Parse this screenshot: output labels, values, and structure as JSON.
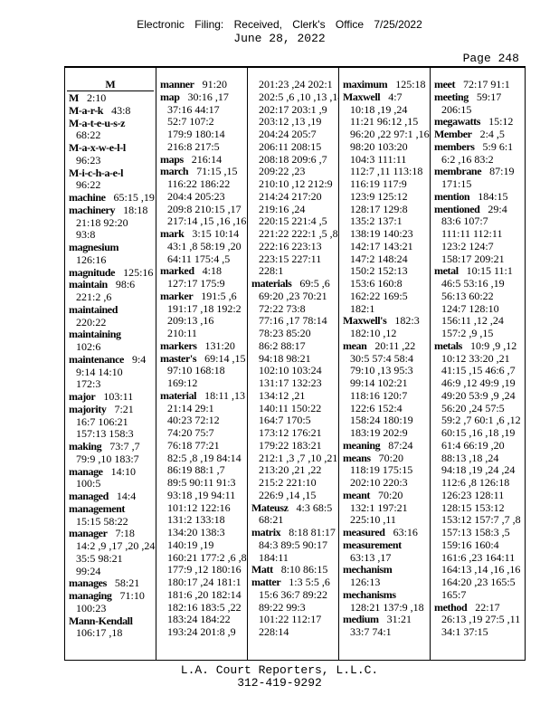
{
  "header": {
    "filing_stamp": "Electronic Filing: Received, Clerk's Office 7/25/2022",
    "date": "June 28, 2022",
    "page": "Page 248"
  },
  "section_letter": "M",
  "columns": [
    [
      {
        "term": "M",
        "lines": [
          "2:10"
        ]
      },
      {
        "term": "M-a-r-k",
        "lines": [
          "43:8"
        ]
      },
      {
        "term": "M-a-t-e-u-s-z",
        "lines": [
          "",
          "68:22"
        ]
      },
      {
        "term": "M-a-x-w-e-l-l",
        "lines": [
          "",
          "96:23"
        ]
      },
      {
        "term": "M-i-c-h-a-e-l",
        "lines": [
          "",
          "96:22"
        ]
      },
      {
        "term": "machine",
        "lines": [
          "65:15 ,19"
        ]
      },
      {
        "term": "machinery",
        "lines": [
          "18:18",
          "21:18 92:20",
          "93:8"
        ]
      },
      {
        "term": "magnesium",
        "lines": [
          "",
          "126:16"
        ]
      },
      {
        "term": "magnitude",
        "lines": [
          "125:16"
        ]
      },
      {
        "term": "maintain",
        "lines": [
          "98:6",
          "221:2 ,6"
        ]
      },
      {
        "term": "maintained",
        "lines": [
          "",
          "220:22"
        ]
      },
      {
        "term": "maintaining",
        "lines": [
          "",
          "102:6"
        ]
      },
      {
        "term": "maintenance",
        "lines": [
          "9:4",
          "9:14 14:10",
          "172:3"
        ]
      },
      {
        "term": "major",
        "lines": [
          "103:11"
        ]
      },
      {
        "term": "majority",
        "lines": [
          "7:21",
          "16:7 106:21",
          "157:13 158:3"
        ]
      },
      {
        "term": "making",
        "lines": [
          "73:7 ,7",
          "79:9 ,10 183:7"
        ]
      },
      {
        "term": "manage",
        "lines": [
          "14:10",
          "100:5"
        ]
      },
      {
        "term": "managed",
        "lines": [
          "14:4"
        ]
      },
      {
        "term": "management",
        "lines": [
          "",
          "15:15 58:22"
        ]
      },
      {
        "term": "manager",
        "lines": [
          "7:18",
          "14:2 ,9 ,17 ,20 ,24",
          "35:5 98:21",
          "99:24"
        ]
      },
      {
        "term": "manages",
        "lines": [
          "58:21"
        ]
      },
      {
        "term": "managing",
        "lines": [
          "71:10",
          "100:23"
        ]
      },
      {
        "term": "Mann-Kendall",
        "lines": [
          "",
          "106:17 ,18"
        ]
      }
    ],
    [
      {
        "term": "manner",
        "lines": [
          "91:20"
        ]
      },
      {
        "term": "map",
        "lines": [
          "30:16 ,17",
          "37:16 44:17",
          "52:7 107:2",
          "179:9 180:14",
          "216:8 217:5"
        ]
      },
      {
        "term": "maps",
        "lines": [
          "216:14"
        ]
      },
      {
        "term": "march",
        "lines": [
          "71:15 ,15",
          "116:22 186:22",
          "204:4 205:23",
          "209:8 210:15 ,17",
          "217:14 ,15 ,16 ,16"
        ]
      },
      {
        "term": "mark",
        "lines": [
          "3:15 10:14",
          "43:1 ,8 58:19 ,20",
          "64:11 175:4 ,5"
        ]
      },
      {
        "term": "marked",
        "lines": [
          "4:18",
          "127:17 175:9"
        ]
      },
      {
        "term": "marker",
        "lines": [
          "191:5 ,6",
          "191:17 ,18 192:2",
          "209:13 ,16",
          "210:11"
        ]
      },
      {
        "term": "markers",
        "lines": [
          "131:20"
        ]
      },
      {
        "term": "master's",
        "lines": [
          "69:14 ,15",
          "97:10 168:18",
          "169:12"
        ]
      },
      {
        "term": "material",
        "lines": [
          "18:11 ,13",
          "21:14 29:1",
          "40:23 72:12",
          "74:20 75:7",
          "76:18 77:21",
          "82:5 ,8 ,19 84:14",
          "86:19 88:1 ,7",
          "89:5 90:11 91:3",
          "93:18 ,19 94:11",
          "101:12 122:16",
          "131:2 133:18",
          "134:20 138:3",
          "140:19 ,19",
          "160:21 177:2 ,6 ,8",
          "177:9 ,12 180:16",
          "180:17 ,24 181:1",
          "181:6 ,20 182:14",
          "182:16 183:5 ,22",
          "183:24 184:22",
          "193:24 201:8 ,9"
        ]
      }
    ],
    [
      {
        "term": "",
        "lines": [
          "",
          "201:23 ,24 202:1",
          "202:5 ,6 ,10 ,13 ,14",
          "202:17 203:1 ,9",
          "203:12 ,13 ,19",
          "204:24 205:7",
          "206:11 208:15",
          "208:18 209:6 ,7",
          "209:22 ,23",
          "210:10 ,12 212:9",
          "214:24 217:20",
          "219:16 ,24",
          "220:15 221:4 ,5",
          "221:22 222:1 ,5 ,8",
          "222:16 223:13",
          "223:15 227:11",
          "228:1"
        ]
      },
      {
        "term": "materials",
        "lines": [
          "69:5 ,6",
          "69:20 ,23 70:21",
          "72:22 73:8",
          "77:16 ,17 78:14",
          "78:23 85:20",
          "86:2 88:17",
          "94:18 98:21",
          "102:10 103:24",
          "131:17 132:23",
          "134:12 ,21",
          "140:11 150:22",
          "164:7 170:5",
          "173:12 176:21",
          "179:22 183:21",
          "212:1 ,3 ,7 ,10 ,21",
          "213:20 ,21 ,22",
          "215:2 221:10",
          "226:9 ,14 ,15"
        ]
      },
      {
        "term": "Mateusz",
        "lines": [
          "4:3 68:5",
          "68:21"
        ]
      },
      {
        "term": "matrix",
        "lines": [
          "8:18 81:17",
          "84:3 89:5 90:17",
          "184:11"
        ]
      },
      {
        "term": "Matt",
        "lines": [
          "8:10 86:15"
        ]
      },
      {
        "term": "matter",
        "lines": [
          "1:3 5:5 ,6",
          "15:6 36:7 89:22",
          "89:22 99:3",
          "101:22 112:17",
          "228:14"
        ]
      }
    ],
    [
      {
        "term": "maximum",
        "lines": [
          "125:18"
        ]
      },
      {
        "term": "Maxwell",
        "lines": [
          "4:7",
          "10:18 ,19 ,24",
          "11:21 96:12 ,15",
          "96:20 ,22 97:1 ,16",
          "98:20 103:20",
          "104:3 111:11",
          "112:7 ,11 113:18",
          "116:19 117:9",
          "123:9 125:12",
          "128:17 129:8",
          "135:2 137:1",
          "138:19 140:23",
          "142:17 143:21",
          "147:2 148:24",
          "150:2 152:13",
          "153:6 160:8",
          "162:22 169:5",
          "182:1"
        ]
      },
      {
        "term": "Maxwell's",
        "lines": [
          "182:3",
          "182:10 ,12"
        ]
      },
      {
        "term": "mean",
        "lines": [
          "20:11 ,22",
          "30:5 57:4 58:4",
          "79:10 ,13 95:3",
          "99:14 102:21",
          "118:16 120:7",
          "122:6 152:4",
          "158:24 180:19",
          "183:19 202:9"
        ]
      },
      {
        "term": "meaning",
        "lines": [
          "87:24"
        ]
      },
      {
        "term": "means",
        "lines": [
          "70:20",
          "118:19 175:15",
          "202:10 220:3"
        ]
      },
      {
        "term": "meant",
        "lines": [
          "70:20",
          "132:1 197:21",
          "225:10 ,11"
        ]
      },
      {
        "term": "measured",
        "lines": [
          "63:16"
        ]
      },
      {
        "term": "measurement",
        "lines": [
          "",
          "63:13 ,17"
        ]
      },
      {
        "term": "mechanism",
        "lines": [
          "",
          "126:13"
        ]
      },
      {
        "term": "mechanisms",
        "lines": [
          "",
          "128:21 137:9 ,18"
        ]
      },
      {
        "term": "medium",
        "lines": [
          "31:21",
          "33:7 74:1"
        ]
      }
    ],
    [
      {
        "term": "meet",
        "lines": [
          "72:17 91:1"
        ]
      },
      {
        "term": "meeting",
        "lines": [
          "59:17",
          "206:15"
        ]
      },
      {
        "term": "megawatts",
        "lines": [
          "15:12"
        ]
      },
      {
        "term": "Member",
        "lines": [
          "2:4 ,5"
        ]
      },
      {
        "term": "members",
        "lines": [
          "5:9 6:1",
          "6:2 ,16 83:2"
        ]
      },
      {
        "term": "membrane",
        "lines": [
          "87:19",
          "171:15"
        ]
      },
      {
        "term": "mention",
        "lines": [
          "184:15"
        ]
      },
      {
        "term": "mentioned",
        "lines": [
          "29:4",
          "83:6 107:7",
          "111:11 112:11",
          "123:2 124:7",
          "158:17 209:21"
        ]
      },
      {
        "term": "metal",
        "lines": [
          "10:15 11:1",
          "46:5 53:16 ,19",
          "56:13 60:22",
          "124:7 128:10",
          "156:11 ,12 ,24",
          "157:2 ,9 ,15"
        ]
      },
      {
        "term": "metals",
        "lines": [
          "10:9 ,9 ,12",
          "10:12 33:20 ,21",
          "41:15 ,15 46:6 ,7",
          "46:9 ,12 49:9 ,19",
          "49:20 53:9 ,9 ,24",
          "56:20 ,24 57:5",
          "59:2 ,7 60:1 ,6 ,12",
          "60:15 ,16 ,18 ,19",
          "61:4 66:19 ,20",
          "88:13 ,18 ,24",
          "94:18 ,19 ,24 ,24",
          "112:6 ,8 126:18",
          "126:23 128:11",
          "128:15 153:12",
          "153:12 157:7 ,7 ,8",
          "157:13 158:3 ,5",
          "159:16 160:4",
          "161:6 ,23 164:11",
          "164:13 ,14 ,16 ,16",
          "164:20 ,23 165:5",
          "165:7"
        ]
      },
      {
        "term": "method",
        "lines": [
          "22:17",
          "26:13 ,19 27:5 ,11",
          "34:1 37:15"
        ]
      }
    ]
  ],
  "footer": {
    "company": "L.A. Court Reporters, L.L.C.",
    "phone": "312-419-9292"
  }
}
